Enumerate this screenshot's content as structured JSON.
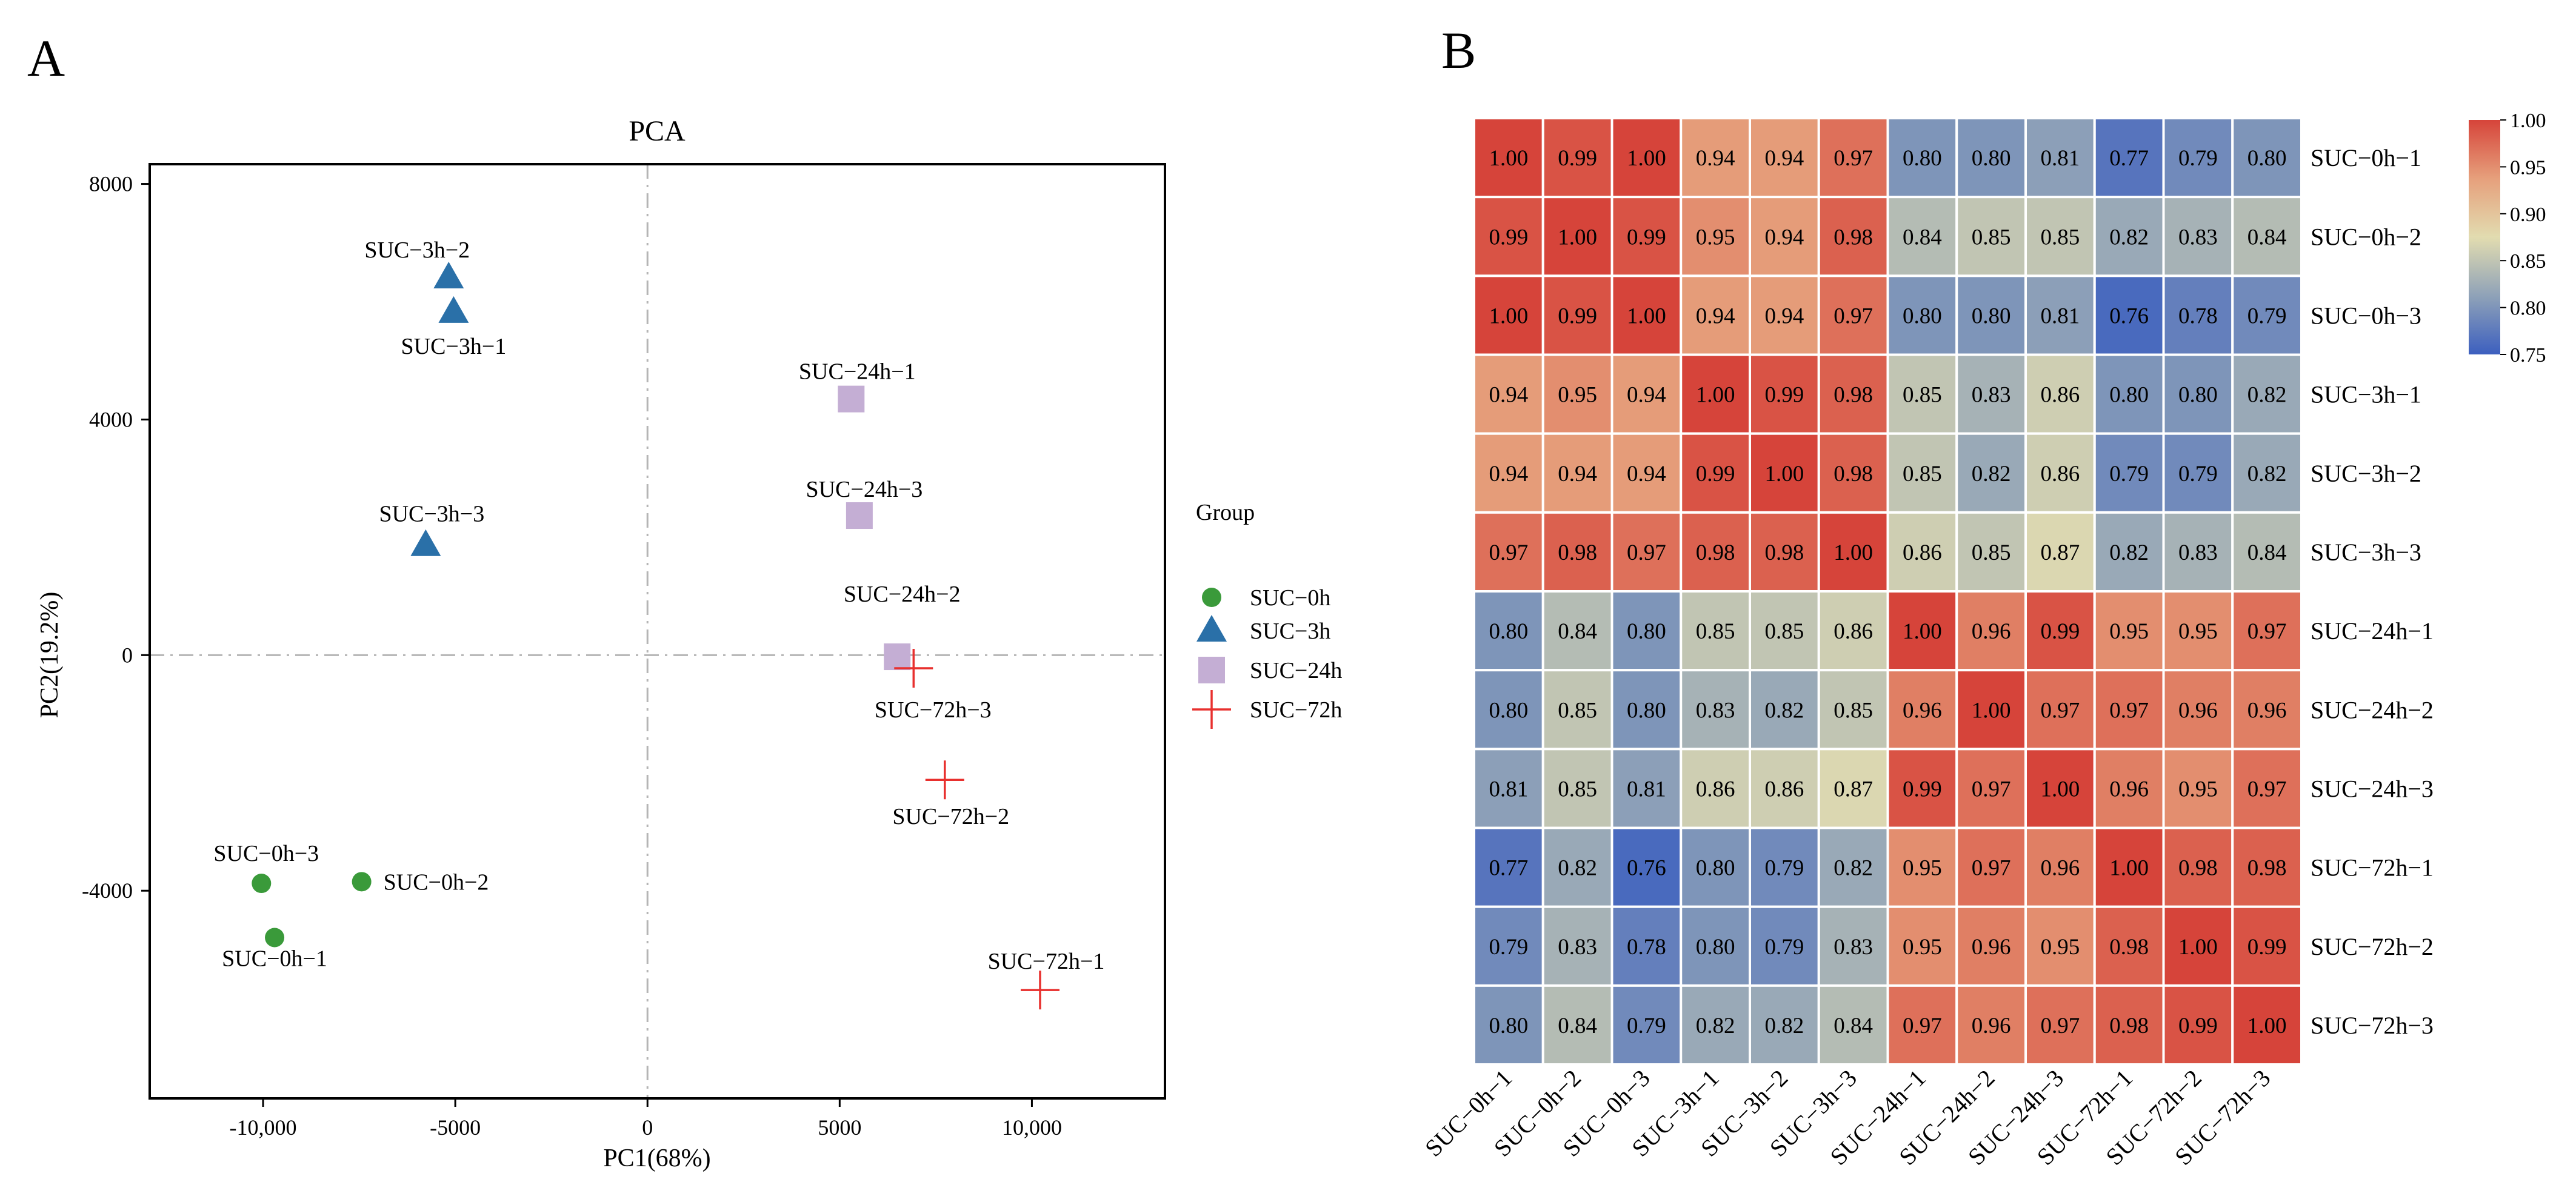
{
  "chart_data": [
    {
      "type": "scatter",
      "panel_label": "A",
      "title": "PCA",
      "xlabel": "PC1(68%)",
      "ylabel": "PC2(19.2%)",
      "xlim": [
        -12949,
        13462
      ],
      "ylim": [
        -7526,
        8335
      ],
      "xticks": [
        {
          "value": -10000,
          "label": "-10,000"
        },
        {
          "value": -5000,
          "label": "-5000"
        },
        {
          "value": 0,
          "label": "0"
        },
        {
          "value": 5000,
          "label": "5000"
        },
        {
          "value": 10000,
          "label": "10,000"
        }
      ],
      "yticks": [
        {
          "value": -4000,
          "label": "-4000"
        },
        {
          "value": 0,
          "label": "0"
        },
        {
          "value": 4000,
          "label": "4000"
        },
        {
          "value": 8000,
          "label": "8000"
        }
      ],
      "reference_lines": {
        "x": 0,
        "y": 0
      },
      "legend": {
        "title": "Group",
        "placement": "right"
      },
      "groups": [
        {
          "name": "SUC−0h",
          "shape": "circle",
          "color": "#3a9a3a"
        },
        {
          "name": "SUC−3h",
          "shape": "triangle",
          "color": "#2a70a8"
        },
        {
          "name": "SUC−24h",
          "shape": "square",
          "color": "#c4aed4"
        },
        {
          "name": "SUC−72h",
          "shape": "plus",
          "color": "#e8302e"
        }
      ],
      "points": [
        {
          "label": "SUC−0h−1",
          "group": 0,
          "x": -9700,
          "y": -4795
        },
        {
          "label": "SUC−0h−2",
          "group": 0,
          "x": -7436,
          "y": -3847
        },
        {
          "label": "SUC−0h−3",
          "group": 0,
          "x": -10043,
          "y": -3875
        },
        {
          "label": "SUC−3h−1",
          "group": 1,
          "x": -5043,
          "y": 5826
        },
        {
          "label": "SUC−3h−2",
          "group": 1,
          "x": -5171,
          "y": 6411
        },
        {
          "label": "SUC−3h−3",
          "group": 1,
          "x": -5769,
          "y": 1868
        },
        {
          "label": "SUC−24h−1",
          "group": 2,
          "x": 5299,
          "y": 4348
        },
        {
          "label": "SUC−24h−2",
          "group": 2,
          "x": 6496,
          "y": -28
        },
        {
          "label": "SUC−24h−3",
          "group": 2,
          "x": 5513,
          "y": 2369
        },
        {
          "label": "SUC−72h−1",
          "group": 3,
          "x": 10214,
          "y": -5686
        },
        {
          "label": "SUC−72h−2",
          "group": 3,
          "x": 7735,
          "y": -2118
        },
        {
          "label": "SUC−72h−3",
          "group": 3,
          "x": 6923,
          "y": -223
        }
      ]
    },
    {
      "type": "heatmap",
      "panel_label": "B",
      "rows": [
        "SUC−0h−1",
        "SUC−0h−2",
        "SUC−0h−3",
        "SUC−3h−1",
        "SUC−3h−2",
        "SUC−3h−3",
        "SUC−24h−1",
        "SUC−24h−2",
        "SUC−24h−3",
        "SUC−72h−1",
        "SUC−72h−2",
        "SUC−72h−3"
      ],
      "columns": [
        "SUC−0h−1",
        "SUC−0h−2",
        "SUC−0h−3",
        "SUC−3h−1",
        "SUC−3h−2",
        "SUC−3h−3",
        "SUC−24h−1",
        "SUC−24h−2",
        "SUC−24h−3",
        "SUC−72h−1",
        "SUC−72h−2",
        "SUC−72h−3"
      ],
      "values": [
        [
          1.0,
          0.99,
          1.0,
          0.94,
          0.94,
          0.97,
          0.8,
          0.8,
          0.81,
          0.77,
          0.79,
          0.8
        ],
        [
          0.99,
          1.0,
          0.99,
          0.95,
          0.94,
          0.98,
          0.84,
          0.85,
          0.85,
          0.82,
          0.83,
          0.84
        ],
        [
          1.0,
          0.99,
          1.0,
          0.94,
          0.94,
          0.97,
          0.8,
          0.8,
          0.81,
          0.76,
          0.78,
          0.79
        ],
        [
          0.94,
          0.95,
          0.94,
          1.0,
          0.99,
          0.98,
          0.85,
          0.83,
          0.86,
          0.8,
          0.8,
          0.82
        ],
        [
          0.94,
          0.94,
          0.94,
          0.99,
          1.0,
          0.98,
          0.85,
          0.82,
          0.86,
          0.79,
          0.79,
          0.82
        ],
        [
          0.97,
          0.98,
          0.97,
          0.98,
          0.98,
          1.0,
          0.86,
          0.85,
          0.87,
          0.82,
          0.83,
          0.84
        ],
        [
          0.8,
          0.84,
          0.8,
          0.85,
          0.85,
          0.86,
          1.0,
          0.96,
          0.99,
          0.95,
          0.95,
          0.97
        ],
        [
          0.8,
          0.85,
          0.8,
          0.83,
          0.82,
          0.85,
          0.96,
          1.0,
          0.97,
          0.97,
          0.96,
          0.96
        ],
        [
          0.81,
          0.85,
          0.81,
          0.86,
          0.86,
          0.87,
          0.99,
          0.97,
          1.0,
          0.96,
          0.95,
          0.97
        ],
        [
          0.77,
          0.82,
          0.76,
          0.8,
          0.79,
          0.82,
          0.95,
          0.97,
          0.96,
          1.0,
          0.98,
          0.98
        ],
        [
          0.79,
          0.83,
          0.78,
          0.8,
          0.79,
          0.83,
          0.95,
          0.96,
          0.95,
          0.98,
          1.0,
          0.99
        ],
        [
          0.8,
          0.84,
          0.79,
          0.82,
          0.82,
          0.84,
          0.97,
          0.96,
          0.97,
          0.98,
          0.99,
          1.0
        ]
      ],
      "colorbar": {
        "range": [
          0.75,
          1.0
        ],
        "ticks": [
          "0.75",
          "0.80",
          "0.85",
          "0.90",
          "0.95",
          "1.00"
        ],
        "stops": [
          {
            "value": 0.75,
            "color": "#3c5fbf"
          },
          {
            "value": 0.8125,
            "color": "#8fa2b8"
          },
          {
            "value": 0.875,
            "color": "#e2dcb0"
          },
          {
            "value": 0.9375,
            "color": "#e6a07c"
          },
          {
            "value": 1.0,
            "color": "#d6443a"
          }
        ]
      }
    }
  ]
}
